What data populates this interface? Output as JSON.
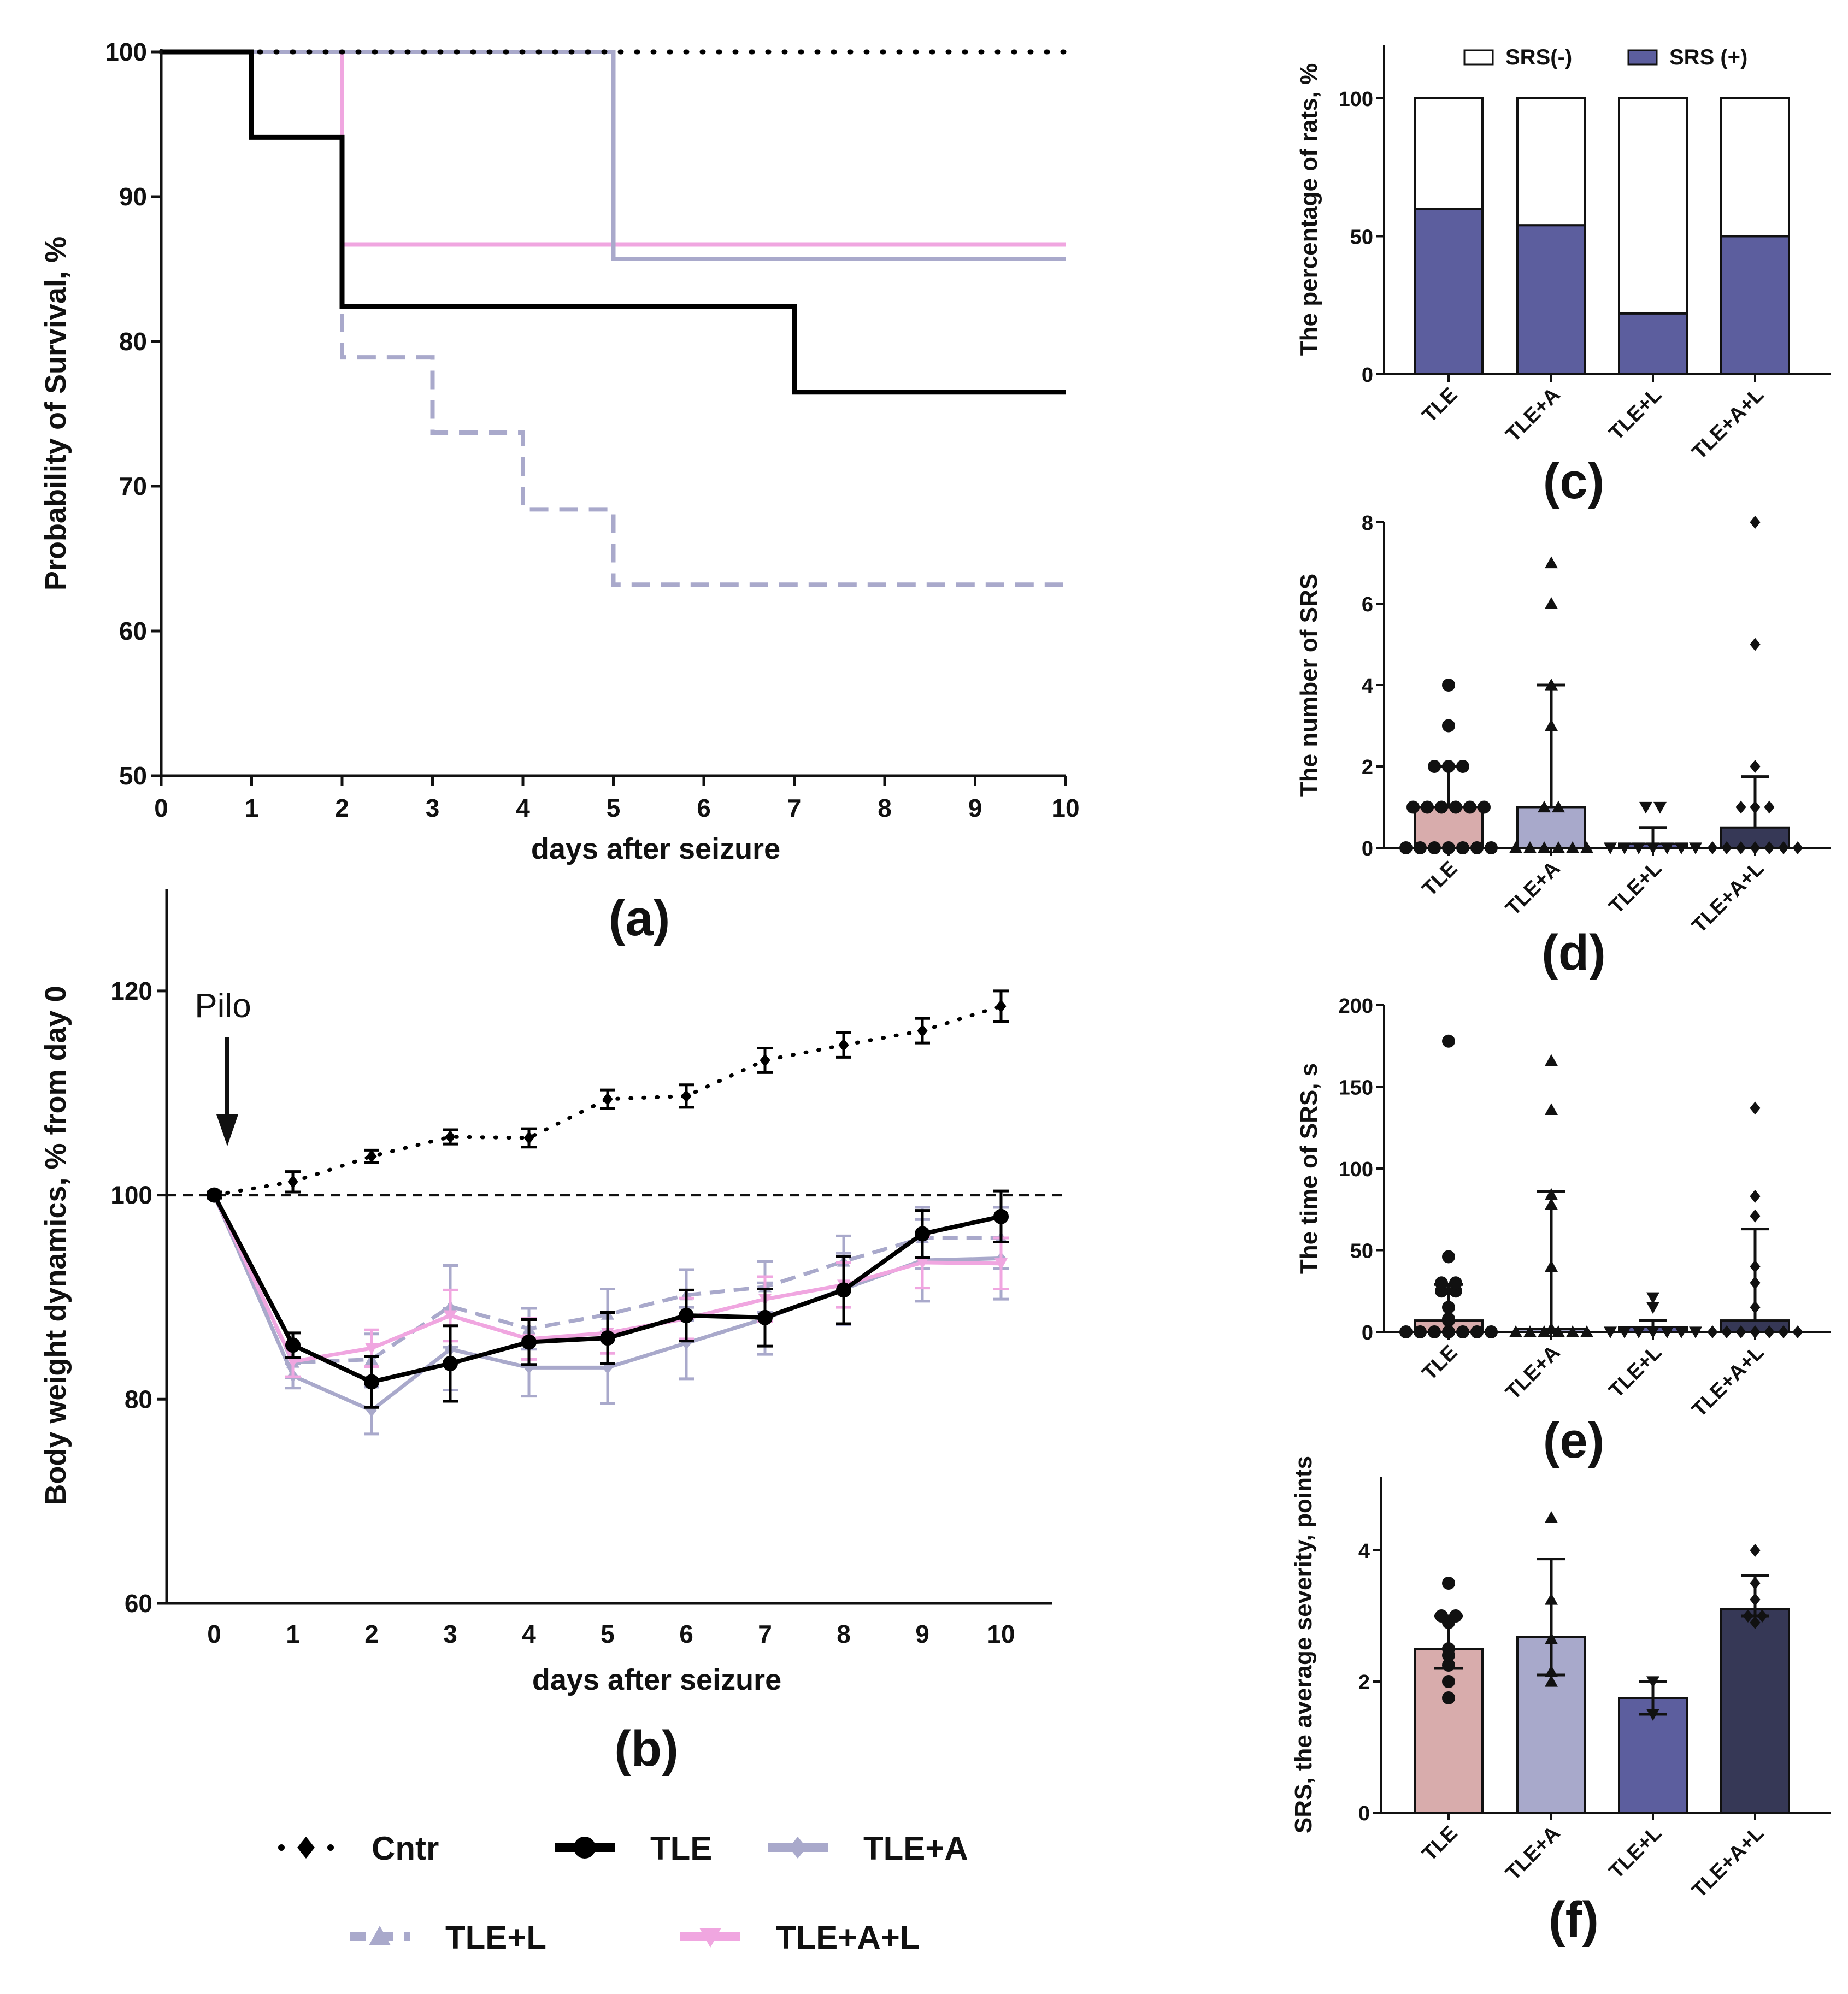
{
  "colors": {
    "cntr": "#000000",
    "tle": "#000000",
    "tle_a": "#a9a9cb",
    "tle_l": "#a9a9cb",
    "tle_a_l": "#f0a6e0",
    "srs_pos": "#5c5e9e",
    "bar_tle": "#d8acac",
    "bar_tle_a": "#a8a9cb",
    "bar_tle_l": "#5c5e9e",
    "bar_tle_a_l": "#363856"
  },
  "legend": {
    "items": [
      {
        "key": "cntr",
        "label": "Cntr"
      },
      {
        "key": "tle",
        "label": "TLE"
      },
      {
        "key": "tle_a",
        "label": "TLE+A"
      },
      {
        "key": "tle_l",
        "label": "TLE+L"
      },
      {
        "key": "tle_a_l",
        "label": "TLE+A+L"
      }
    ]
  },
  "chart_data": [
    {
      "id": "a",
      "panel_label": "(a)",
      "type": "line",
      "subtype": "survival-step",
      "xlabel": "days after seizure",
      "ylabel": "Probability of Survival, %",
      "xlim": [
        0,
        10
      ],
      "ylim": [
        50,
        100
      ],
      "xticks": [
        0,
        1,
        2,
        3,
        4,
        5,
        6,
        7,
        8,
        9,
        10
      ],
      "yticks": [
        50,
        60,
        70,
        80,
        90,
        100
      ],
      "series": [
        {
          "name": "Cntr",
          "style": "dotted",
          "steps": [
            [
              0,
              100
            ],
            [
              10,
              100
            ]
          ]
        },
        {
          "name": "TLE",
          "style": "solid",
          "steps": [
            [
              0,
              100
            ],
            [
              1,
              94.1
            ],
            [
              2,
              82.4
            ],
            [
              7,
              76.5
            ],
            [
              10,
              76.5
            ]
          ]
        },
        {
          "name": "TLE+A",
          "style": "solid",
          "steps": [
            [
              0,
              100
            ],
            [
              5,
              85.7
            ],
            [
              10,
              85.7
            ]
          ]
        },
        {
          "name": "TLE+L",
          "style": "dashed",
          "steps": [
            [
              0,
              100
            ],
            [
              2,
              78.9
            ],
            [
              3,
              73.7
            ],
            [
              4,
              68.4
            ],
            [
              5,
              63.2
            ],
            [
              10,
              63.2
            ]
          ]
        },
        {
          "name": "TLE+A+L",
          "style": "solid",
          "steps": [
            [
              0,
              100
            ],
            [
              2,
              86.7
            ],
            [
              10,
              86.7
            ]
          ]
        }
      ]
    },
    {
      "id": "b",
      "panel_label": "(b)",
      "type": "line",
      "xlabel": "days after seizure",
      "ylabel": "Body weight dynamics, % from day 0",
      "annotation": "Pilo",
      "reference_line": 100,
      "xlim": [
        -0.65,
        10.65
      ],
      "ylim": [
        60,
        130
      ],
      "xticks": [
        0,
        1,
        2,
        3,
        4,
        5,
        6,
        7,
        8,
        9,
        10
      ],
      "yticks": [
        60,
        80,
        100,
        120
      ],
      "x": [
        0,
        1,
        2,
        3,
        4,
        5,
        6,
        7,
        8,
        9,
        10
      ],
      "series": [
        {
          "name": "Cntr",
          "style": "dotted",
          "values": [
            100,
            101.3,
            103.8,
            105.7,
            105.6,
            109.4,
            109.7,
            113.2,
            114.7,
            116.1,
            118.5
          ],
          "err": [
            0.3,
            1.0,
            0.6,
            0.7,
            0.9,
            0.9,
            1.1,
            1.2,
            1.2,
            1.2,
            1.5
          ]
        },
        {
          "name": "TLE+A",
          "style": "solid",
          "values": [
            100,
            82.3,
            78.9,
            84.9,
            83.1,
            83.1,
            85.5,
            87.9,
            90.8,
            93.6,
            93.8
          ],
          "err": [
            0,
            1.2,
            2.3,
            4.0,
            2.8,
            3.5,
            3.5,
            3.5,
            3.5,
            4.0,
            4.0
          ]
        },
        {
          "name": "TLE+L",
          "style": "dashed",
          "values": [
            100,
            83.6,
            83.9,
            89.1,
            86.9,
            88.3,
            90.2,
            91.0,
            93.5,
            95.8,
            95.8
          ],
          "err": [
            0,
            1.5,
            2.5,
            4.0,
            2.0,
            2.5,
            2.5,
            2.5,
            2.5,
            3.0,
            3.0
          ]
        },
        {
          "name": "TLE+A+L",
          "style": "solid",
          "values": [
            100,
            83.7,
            85.0,
            88.2,
            85.9,
            86.5,
            87.9,
            89.8,
            91.2,
            93.4,
            93.3
          ],
          "err": [
            0,
            1.5,
            1.8,
            2.5,
            2.0,
            2.0,
            2.0,
            2.2,
            2.2,
            2.5,
            2.5
          ]
        },
        {
          "name": "TLE",
          "style": "solid",
          "values": [
            100,
            85.3,
            81.7,
            83.5,
            85.6,
            86.0,
            88.2,
            88.0,
            90.7,
            96.2,
            97.9
          ],
          "err": [
            0,
            1.2,
            2.5,
            3.7,
            2.2,
            2.5,
            2.5,
            2.8,
            3.3,
            2.3,
            2.5
          ]
        }
      ]
    },
    {
      "id": "c",
      "panel_label": "(c)",
      "type": "bar",
      "subtype": "stacked",
      "ylabel": "The percentage of rats, %",
      "ylim": [
        0,
        120
      ],
      "yticks": [
        0,
        50,
        100
      ],
      "categories": [
        "TLE",
        "TLE+A",
        "TLE+L",
        "TLE+A+L"
      ],
      "series": [
        {
          "name": "SRS (+)",
          "values": [
            60,
            54,
            22,
            50
          ]
        },
        {
          "name": "SRS(-)",
          "values": [
            40,
            46,
            78,
            50
          ]
        }
      ],
      "legend_position": "top"
    },
    {
      "id": "d",
      "panel_label": "(d)",
      "type": "bar",
      "ylabel": "The number of SRS",
      "ylim": [
        0,
        8
      ],
      "yticks": [
        0,
        2,
        4,
        6,
        8
      ],
      "categories": [
        "TLE",
        "TLE+A",
        "TLE+L",
        "TLE+A+L"
      ],
      "values": [
        1,
        1,
        0.1,
        0.5
      ],
      "err_upper": [
        2,
        4,
        0.5,
        1.75
      ],
      "points": [
        [
          0,
          0,
          0,
          0,
          0,
          0,
          0,
          1,
          1,
          1,
          1,
          1,
          1,
          2,
          2,
          2,
          3,
          4
        ],
        [
          0,
          0,
          0,
          0,
          0,
          0,
          1,
          1,
          3,
          4,
          6,
          7
        ],
        [
          0,
          0,
          0,
          0,
          0,
          0,
          0,
          1,
          1
        ],
        [
          0,
          0,
          0,
          0,
          0,
          0,
          0,
          1,
          1,
          1,
          2,
          5,
          8
        ]
      ]
    },
    {
      "id": "e",
      "panel_label": "(e)",
      "type": "bar",
      "ylabel": "The time of SRS, s",
      "ylim": [
        0,
        200
      ],
      "yticks": [
        0,
        50,
        100,
        150,
        200
      ],
      "categories": [
        "TLE",
        "TLE+A",
        "TLE+L",
        "TLE+A+L"
      ],
      "values": [
        7,
        2,
        3,
        7
      ],
      "err_upper": [
        29,
        86,
        7,
        63
      ],
      "points": [
        [
          0,
          0,
          0,
          0,
          0,
          0,
          0,
          7,
          8,
          15,
          25,
          25,
          30,
          30,
          46,
          178
        ],
        [
          0,
          0,
          0,
          0,
          0,
          0,
          2,
          40,
          78,
          84,
          136,
          166
        ],
        [
          0,
          0,
          0,
          0,
          0,
          0,
          0,
          15,
          21
        ],
        [
          0,
          0,
          0,
          0,
          0,
          0,
          0,
          15,
          30,
          40,
          71,
          83,
          137
        ]
      ]
    },
    {
      "id": "f",
      "panel_label": "(f)",
      "type": "bar",
      "ylabel": "SRS, the average severity, points",
      "ylim": [
        0,
        5
      ],
      "yticks": [
        0,
        2,
        4
      ],
      "categories": [
        "TLE",
        "TLE+A",
        "TLE+L",
        "TLE+A+L"
      ],
      "values": [
        2.5,
        2.68,
        1.75,
        3.1
      ],
      "err_lower": [
        2.2,
        2.1,
        1.5,
        3.0
      ],
      "err_upper": [
        3.0,
        3.87,
        2.0,
        3.62
      ],
      "points": [
        [
          1.75,
          2.0,
          2.25,
          2.4,
          2.5,
          2.9,
          3.0,
          3.0,
          3.5
        ],
        [
          2.0,
          2.15,
          2.65,
          3.25,
          4.5
        ],
        [
          1.5,
          2.0
        ],
        [
          2.9,
          3.0,
          3.0,
          3.25,
          3.5,
          4.0
        ]
      ]
    }
  ]
}
